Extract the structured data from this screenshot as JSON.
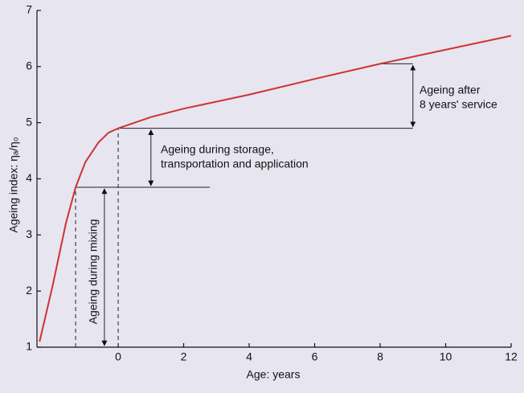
{
  "chart_data": {
    "type": "line",
    "xlabel": "Age: years",
    "ylabel": "Ageing index: ηₐ/η₀",
    "x": [
      -2.4,
      -2.0,
      -1.6,
      -1.3,
      -1.0,
      -0.6,
      -0.3,
      0,
      1,
      2,
      4,
      6,
      8,
      10,
      12
    ],
    "series": [
      {
        "color": "#cc3333",
        "values": [
          1.1,
          2.1,
          3.2,
          3.85,
          4.3,
          4.65,
          4.82,
          4.9,
          5.1,
          5.25,
          5.5,
          5.78,
          6.05,
          6.3,
          6.55
        ]
      }
    ],
    "xlim": [
      -2.48,
      12
    ],
    "xticks": [
      0,
      2,
      4,
      6,
      8,
      10,
      12
    ],
    "ylim": [
      1,
      7
    ],
    "yticks": [
      1,
      2,
      3,
      4,
      5,
      6,
      7
    ],
    "annotations": [
      {
        "lines": [
          "Ageing during mixing"
        ],
        "from": 1,
        "to": 3.85
      },
      {
        "lines": [
          "Ageing during storage,",
          "transportation and application"
        ],
        "from": 3.85,
        "to": 4.9
      },
      {
        "lines": [
          "Ageing after",
          "8 years' service"
        ],
        "from": 4.9,
        "to": 6.05
      }
    ]
  }
}
